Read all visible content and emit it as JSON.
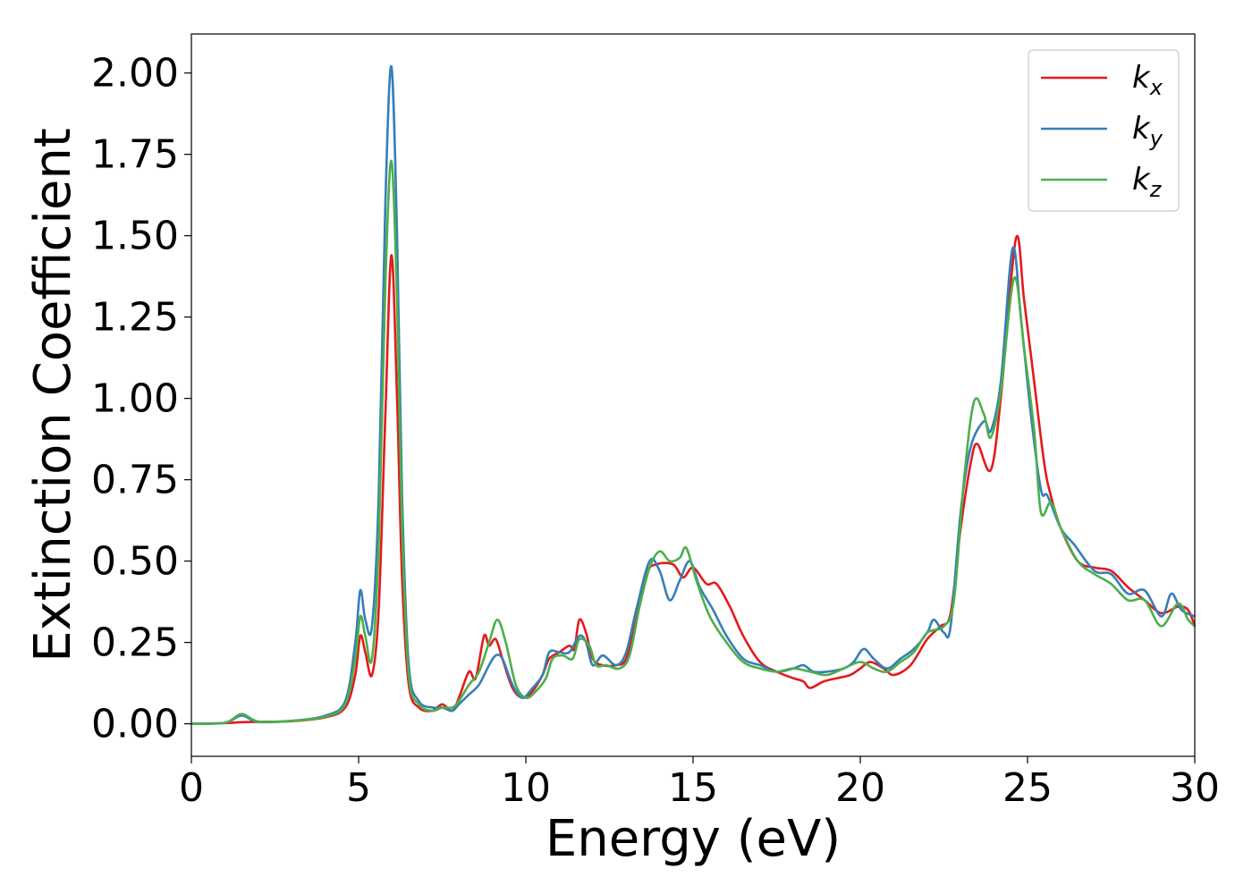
{
  "chart_data": {
    "type": "line",
    "xlabel": "Energy (eV)",
    "ylabel": "Extinction Coefficient",
    "xlim": [
      0,
      30
    ],
    "ylim": [
      -0.1,
      2.12
    ],
    "xticks": [
      0,
      5,
      10,
      15,
      20,
      25,
      30
    ],
    "xtick_labels": [
      "0",
      "5",
      "10",
      "15",
      "20",
      "25",
      "30"
    ],
    "yticks": [
      0,
      0.25,
      0.5,
      0.75,
      1.0,
      1.25,
      1.5,
      1.75,
      2.0
    ],
    "ytick_labels": [
      "0.00",
      "0.25",
      "0.50",
      "0.75",
      "1.00",
      "1.25",
      "1.50",
      "1.75",
      "2.00"
    ],
    "grid": false,
    "legend_position": "top-right",
    "series": [
      {
        "name": "k_x",
        "label_main": "k",
        "label_sub": "x",
        "color": "#e41a1c",
        "points": [
          [
            0,
            0
          ],
          [
            1,
            0.002
          ],
          [
            1.5,
            0.005
          ],
          [
            2,
            0.006
          ],
          [
            3,
            0.008
          ],
          [
            4,
            0.02
          ],
          [
            4.6,
            0.05
          ],
          [
            4.9,
            0.15
          ],
          [
            5.05,
            0.27
          ],
          [
            5.2,
            0.22
          ],
          [
            5.4,
            0.15
          ],
          [
            5.6,
            0.35
          ],
          [
            5.8,
            0.95
          ],
          [
            5.98,
            1.44
          ],
          [
            6.15,
            1.0
          ],
          [
            6.3,
            0.45
          ],
          [
            6.5,
            0.12
          ],
          [
            6.8,
            0.05
          ],
          [
            7.2,
            0.04
          ],
          [
            7.5,
            0.06
          ],
          [
            7.8,
            0.04
          ],
          [
            8.0,
            0.08
          ],
          [
            8.3,
            0.16
          ],
          [
            8.5,
            0.14
          ],
          [
            8.75,
            0.27
          ],
          [
            8.9,
            0.24
          ],
          [
            9.1,
            0.26
          ],
          [
            9.3,
            0.2
          ],
          [
            9.6,
            0.11
          ],
          [
            9.9,
            0.08
          ],
          [
            10.2,
            0.1
          ],
          [
            10.5,
            0.15
          ],
          [
            10.7,
            0.2
          ],
          [
            11.0,
            0.22
          ],
          [
            11.3,
            0.24
          ],
          [
            11.45,
            0.23
          ],
          [
            11.6,
            0.32
          ],
          [
            11.8,
            0.28
          ],
          [
            12.0,
            0.2
          ],
          [
            12.3,
            0.18
          ],
          [
            12.7,
            0.18
          ],
          [
            13.0,
            0.2
          ],
          [
            13.3,
            0.32
          ],
          [
            13.6,
            0.46
          ],
          [
            13.9,
            0.49
          ],
          [
            14.4,
            0.49
          ],
          [
            14.7,
            0.45
          ],
          [
            15.0,
            0.48
          ],
          [
            15.4,
            0.43
          ],
          [
            15.7,
            0.43
          ],
          [
            16.1,
            0.36
          ],
          [
            16.5,
            0.27
          ],
          [
            17.0,
            0.19
          ],
          [
            17.5,
            0.16
          ],
          [
            18.0,
            0.14
          ],
          [
            18.3,
            0.13
          ],
          [
            18.5,
            0.11
          ],
          [
            18.9,
            0.13
          ],
          [
            19.3,
            0.14
          ],
          [
            19.7,
            0.15
          ],
          [
            20.0,
            0.17
          ],
          [
            20.3,
            0.19
          ],
          [
            20.7,
            0.17
          ],
          [
            21.0,
            0.15
          ],
          [
            21.5,
            0.18
          ],
          [
            22.0,
            0.26
          ],
          [
            22.4,
            0.3
          ],
          [
            22.7,
            0.34
          ],
          [
            23.0,
            0.6
          ],
          [
            23.3,
            0.8
          ],
          [
            23.5,
            0.86
          ],
          [
            23.9,
            0.78
          ],
          [
            24.2,
            1.0
          ],
          [
            24.65,
            1.49
          ],
          [
            24.9,
            1.3
          ],
          [
            25.2,
            1.05
          ],
          [
            25.5,
            0.8
          ],
          [
            25.7,
            0.7
          ],
          [
            26.0,
            0.6
          ],
          [
            26.5,
            0.5
          ],
          [
            27.0,
            0.48
          ],
          [
            27.5,
            0.47
          ],
          [
            28.0,
            0.42
          ],
          [
            28.5,
            0.38
          ],
          [
            29.0,
            0.34
          ],
          [
            29.5,
            0.36
          ],
          [
            29.8,
            0.35
          ],
          [
            30,
            0.3
          ]
        ]
      },
      {
        "name": "k_y",
        "label_main": "k",
        "label_sub": "y",
        "color": "#377eb8",
        "points": [
          [
            0,
            0
          ],
          [
            1,
            0.003
          ],
          [
            1.5,
            0.025
          ],
          [
            2,
            0.006
          ],
          [
            3,
            0.009
          ],
          [
            4,
            0.025
          ],
          [
            4.6,
            0.07
          ],
          [
            4.9,
            0.25
          ],
          [
            5.05,
            0.41
          ],
          [
            5.2,
            0.32
          ],
          [
            5.4,
            0.3
          ],
          [
            5.6,
            0.7
          ],
          [
            5.8,
            1.6
          ],
          [
            5.98,
            2.02
          ],
          [
            6.15,
            1.5
          ],
          [
            6.3,
            0.7
          ],
          [
            6.5,
            0.18
          ],
          [
            6.8,
            0.07
          ],
          [
            7.2,
            0.05
          ],
          [
            7.5,
            0.05
          ],
          [
            7.8,
            0.04
          ],
          [
            8.0,
            0.06
          ],
          [
            8.3,
            0.09
          ],
          [
            8.6,
            0.12
          ],
          [
            8.9,
            0.18
          ],
          [
            9.1,
            0.21
          ],
          [
            9.3,
            0.2
          ],
          [
            9.6,
            0.12
          ],
          [
            9.9,
            0.08
          ],
          [
            10.2,
            0.11
          ],
          [
            10.5,
            0.15
          ],
          [
            10.7,
            0.22
          ],
          [
            11.0,
            0.22
          ],
          [
            11.3,
            0.22
          ],
          [
            11.6,
            0.27
          ],
          [
            11.8,
            0.25
          ],
          [
            12.0,
            0.18
          ],
          [
            12.3,
            0.21
          ],
          [
            12.7,
            0.18
          ],
          [
            13.0,
            0.22
          ],
          [
            13.3,
            0.35
          ],
          [
            13.7,
            0.5
          ],
          [
            14.0,
            0.47
          ],
          [
            14.3,
            0.38
          ],
          [
            14.6,
            0.44
          ],
          [
            14.9,
            0.5
          ],
          [
            15.2,
            0.42
          ],
          [
            15.6,
            0.35
          ],
          [
            16.0,
            0.27
          ],
          [
            16.5,
            0.2
          ],
          [
            17.0,
            0.18
          ],
          [
            17.5,
            0.16
          ],
          [
            18.0,
            0.17
          ],
          [
            18.3,
            0.18
          ],
          [
            18.6,
            0.16
          ],
          [
            19.0,
            0.16
          ],
          [
            19.5,
            0.17
          ],
          [
            19.8,
            0.19
          ],
          [
            20.1,
            0.23
          ],
          [
            20.4,
            0.2
          ],
          [
            20.8,
            0.17
          ],
          [
            21.2,
            0.2
          ],
          [
            21.6,
            0.23
          ],
          [
            22.0,
            0.28
          ],
          [
            22.2,
            0.32
          ],
          [
            22.5,
            0.28
          ],
          [
            22.7,
            0.3
          ],
          [
            23.0,
            0.65
          ],
          [
            23.3,
            0.85
          ],
          [
            23.7,
            0.93
          ],
          [
            23.9,
            0.9
          ],
          [
            24.2,
            1.05
          ],
          [
            24.55,
            1.46
          ],
          [
            24.8,
            1.25
          ],
          [
            25.1,
            0.95
          ],
          [
            25.4,
            0.72
          ],
          [
            25.6,
            0.7
          ],
          [
            26.0,
            0.6
          ],
          [
            26.4,
            0.55
          ],
          [
            27.0,
            0.47
          ],
          [
            27.5,
            0.46
          ],
          [
            28.0,
            0.4
          ],
          [
            28.5,
            0.41
          ],
          [
            29.0,
            0.33
          ],
          [
            29.3,
            0.4
          ],
          [
            29.6,
            0.35
          ],
          [
            30,
            0.33
          ]
        ]
      },
      {
        "name": "k_z",
        "label_main": "k",
        "label_sub": "z",
        "color": "#4daf4a",
        "points": [
          [
            0,
            0
          ],
          [
            1,
            0.003
          ],
          [
            1.5,
            0.03
          ],
          [
            2,
            0.007
          ],
          [
            3,
            0.009
          ],
          [
            4,
            0.022
          ],
          [
            4.6,
            0.06
          ],
          [
            4.9,
            0.2
          ],
          [
            5.05,
            0.33
          ],
          [
            5.2,
            0.27
          ],
          [
            5.4,
            0.2
          ],
          [
            5.6,
            0.55
          ],
          [
            5.8,
            1.35
          ],
          [
            5.98,
            1.73
          ],
          [
            6.15,
            1.3
          ],
          [
            6.3,
            0.6
          ],
          [
            6.5,
            0.15
          ],
          [
            6.8,
            0.06
          ],
          [
            7.2,
            0.04
          ],
          [
            7.5,
            0.05
          ],
          [
            7.8,
            0.05
          ],
          [
            8.0,
            0.07
          ],
          [
            8.3,
            0.12
          ],
          [
            8.6,
            0.16
          ],
          [
            8.9,
            0.25
          ],
          [
            9.15,
            0.32
          ],
          [
            9.4,
            0.25
          ],
          [
            9.7,
            0.12
          ],
          [
            10.0,
            0.08
          ],
          [
            10.3,
            0.1
          ],
          [
            10.6,
            0.14
          ],
          [
            10.8,
            0.2
          ],
          [
            11.1,
            0.21
          ],
          [
            11.4,
            0.2
          ],
          [
            11.6,
            0.26
          ],
          [
            11.9,
            0.24
          ],
          [
            12.1,
            0.18
          ],
          [
            12.4,
            0.18
          ],
          [
            12.8,
            0.17
          ],
          [
            13.1,
            0.21
          ],
          [
            13.4,
            0.36
          ],
          [
            13.7,
            0.48
          ],
          [
            14.0,
            0.53
          ],
          [
            14.3,
            0.5
          ],
          [
            14.6,
            0.51
          ],
          [
            14.8,
            0.54
          ],
          [
            15.1,
            0.44
          ],
          [
            15.5,
            0.33
          ],
          [
            16.0,
            0.25
          ],
          [
            16.5,
            0.19
          ],
          [
            17.0,
            0.17
          ],
          [
            17.5,
            0.16
          ],
          [
            18.0,
            0.17
          ],
          [
            18.5,
            0.16
          ],
          [
            19.0,
            0.15
          ],
          [
            19.5,
            0.17
          ],
          [
            20.0,
            0.19
          ],
          [
            20.4,
            0.17
          ],
          [
            20.8,
            0.16
          ],
          [
            21.2,
            0.19
          ],
          [
            21.6,
            0.22
          ],
          [
            22.0,
            0.28
          ],
          [
            22.5,
            0.3
          ],
          [
            22.8,
            0.38
          ],
          [
            23.1,
            0.75
          ],
          [
            23.4,
            0.99
          ],
          [
            23.7,
            0.95
          ],
          [
            23.9,
            0.88
          ],
          [
            24.2,
            1.02
          ],
          [
            24.6,
            1.37
          ],
          [
            24.9,
            1.15
          ],
          [
            25.2,
            0.9
          ],
          [
            25.4,
            0.65
          ],
          [
            25.7,
            0.68
          ],
          [
            26.0,
            0.6
          ],
          [
            26.5,
            0.5
          ],
          [
            27.0,
            0.46
          ],
          [
            27.5,
            0.43
          ],
          [
            28.0,
            0.38
          ],
          [
            28.5,
            0.38
          ],
          [
            29.0,
            0.3
          ],
          [
            29.5,
            0.37
          ],
          [
            29.8,
            0.32
          ],
          [
            30,
            0.3
          ]
        ]
      }
    ]
  }
}
